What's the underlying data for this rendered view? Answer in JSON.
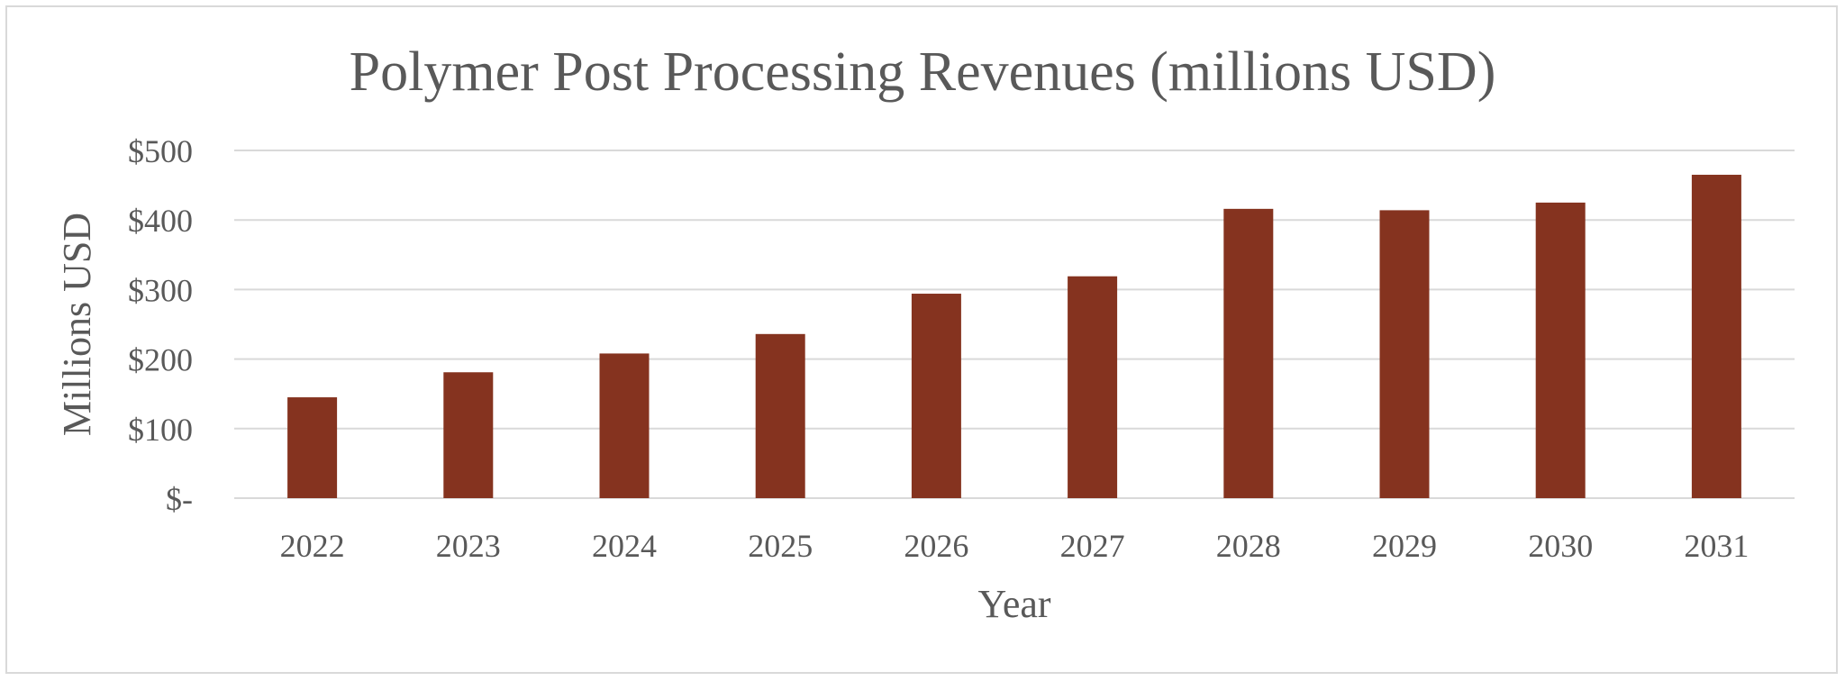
{
  "chart_data": {
    "type": "bar",
    "title": "Polymer Post Processing Revenues (millions USD)",
    "xlabel": "Year",
    "ylabel": "Millions USD",
    "categories": [
      "2022",
      "2023",
      "2024",
      "2025",
      "2026",
      "2027",
      "2028",
      "2029",
      "2030",
      "2031"
    ],
    "values": [
      145,
      181,
      208,
      236,
      294,
      319,
      416,
      414,
      425,
      465
    ],
    "ylim": [
      0,
      500
    ],
    "yticks": [
      0,
      100,
      200,
      300,
      400,
      500
    ],
    "ytick_labels": [
      "$-",
      "$100",
      "$200",
      "$300",
      "$400",
      "$500"
    ],
    "grid": true,
    "legend": "none",
    "bar_color": "#85331f"
  }
}
